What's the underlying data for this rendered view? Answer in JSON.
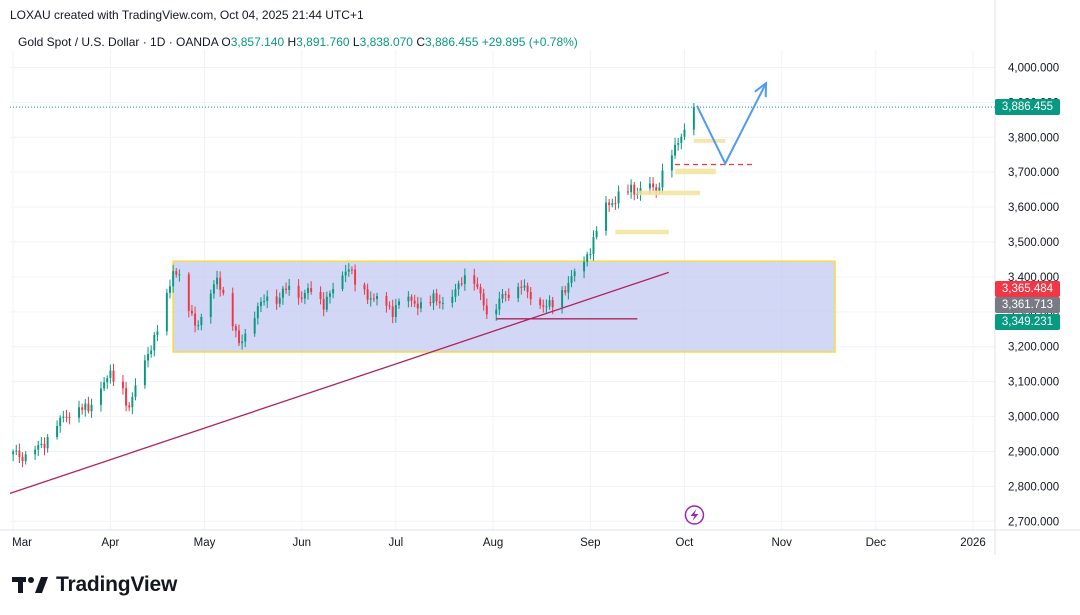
{
  "header": {
    "credit": "LOXAU created with TradingView.com, Oct 04, 2025 21:44 UTC+1"
  },
  "legend": {
    "symbol": "Gold Spot / U.S. Dollar · 1D · OANDA",
    "o_label": "O",
    "o_value": "3,857.140",
    "h_label": "H",
    "h_value": "3,891.760",
    "l_label": "L",
    "l_value": "3,838.070",
    "c_label": "C",
    "c_value": "3,886.455",
    "change": "+29.895 (+0.78%)"
  },
  "branding": {
    "name": "TradingView"
  },
  "colors": {
    "up": "#089981",
    "down": "#f23645",
    "range_fill": "#c5cdf3",
    "range_border": "#f2dd43",
    "trendline": "#b0235e",
    "projection": "#4e9bf4",
    "zone": "#f3e39b",
    "grid": "#f0f3fa",
    "icon": "#9c27b0"
  },
  "price_tags": [
    {
      "label": "3,886.455",
      "value": 3886.455,
      "color": "#089981"
    },
    {
      "label": "3,365.484",
      "value": 3365.484,
      "color": "#f23645"
    },
    {
      "label": "3,361.713",
      "value": 3361.713,
      "color": "#787b86"
    },
    {
      "label": "3,349.231",
      "value": 3349.231,
      "color": "#089981"
    }
  ],
  "chart_data": {
    "type": "candlestick",
    "title": "Gold Spot / U.S. Dollar · 1D · OANDA",
    "y_ticks": [
      "4,000.000",
      "3,900.000",
      "3,800.000",
      "3,700.000",
      "3,600.000",
      "3,500.000",
      "3,400.000",
      "3,300.000",
      "3,200.000",
      "3,100.000",
      "3,000.000",
      "2,900.000",
      "2,800.000",
      "2,700.000"
    ],
    "y_tick_values": [
      4000,
      3900,
      3800,
      3700,
      3600,
      3500,
      3400,
      3300,
      3200,
      3100,
      3000,
      2900,
      2800,
      2700
    ],
    "ylim": [
      2675,
      4050
    ],
    "x_ticks": [
      {
        "label": "Mar",
        "day": 0
      },
      {
        "label": "Apr",
        "day": 31
      },
      {
        "label": "May",
        "day": 61
      },
      {
        "label": "Jun",
        "day": 92
      },
      {
        "label": "Jul",
        "day": 122
      },
      {
        "label": "Aug",
        "day": 153
      },
      {
        "label": "Sep",
        "day": 184
      },
      {
        "label": "Oct",
        "day": 214
      },
      {
        "label": "Nov",
        "day": 245
      },
      {
        "label": "Dec",
        "day": 275
      },
      {
        "label": "2026",
        "day": 306
      }
    ],
    "xlim_days": [
      -1,
      313
    ],
    "anchors": [
      [
        0,
        2900
      ],
      [
        3,
        2880
      ],
      [
        6,
        2905
      ],
      [
        10,
        2920
      ],
      [
        13,
        2980
      ],
      [
        17,
        3000
      ],
      [
        21,
        3030
      ],
      [
        24,
        3020
      ],
      [
        28,
        3090
      ],
      [
        31,
        3120
      ],
      [
        34,
        3100
      ],
      [
        37,
        3020
      ],
      [
        40,
        3120
      ],
      [
        45,
        3220
      ],
      [
        48,
        3300
      ],
      [
        51,
        3420
      ],
      [
        53,
        3395
      ],
      [
        56,
        3300
      ],
      [
        59,
        3260
      ],
      [
        62,
        3320
      ],
      [
        65,
        3400
      ],
      [
        69,
        3290
      ],
      [
        72,
        3210
      ],
      [
        75,
        3250
      ],
      [
        78,
        3310
      ],
      [
        81,
        3350
      ],
      [
        84,
        3330
      ],
      [
        88,
        3380
      ],
      [
        92,
        3340
      ],
      [
        95,
        3370
      ],
      [
        99,
        3320
      ],
      [
        103,
        3380
      ],
      [
        107,
        3430
      ],
      [
        110,
        3360
      ],
      [
        114,
        3340
      ],
      [
        117,
        3330
      ],
      [
        121,
        3300
      ],
      [
        124,
        3340
      ],
      [
        127,
        3330
      ],
      [
        131,
        3310
      ],
      [
        134,
        3340
      ],
      [
        138,
        3320
      ],
      [
        141,
        3360
      ],
      [
        145,
        3420
      ],
      [
        147,
        3390
      ],
      [
        151,
        3300
      ],
      [
        153,
        3290
      ],
      [
        155,
        3340
      ],
      [
        158,
        3350
      ],
      [
        162,
        3380
      ],
      [
        165,
        3340
      ],
      [
        168,
        3320
      ],
      [
        172,
        3320
      ],
      [
        175,
        3350
      ],
      [
        178,
        3400
      ],
      [
        181,
        3420
      ],
      [
        184,
        3480
      ],
      [
        186,
        3530
      ],
      [
        189,
        3600
      ],
      [
        192,
        3620
      ],
      [
        194,
        3640
      ],
      [
        197,
        3650
      ],
      [
        199,
        3640
      ],
      [
        202,
        3680
      ],
      [
        205,
        3640
      ],
      [
        207,
        3700
      ],
      [
        209,
        3750
      ],
      [
        212,
        3780
      ],
      [
        214,
        3830
      ],
      [
        216,
        3857
      ],
      [
        217,
        3886.455
      ]
    ],
    "last_close": 3886.455,
    "range_box": {
      "day_start": 51,
      "day_end": 262,
      "price_top": 3445,
      "price_bottom": 3185
    },
    "trendline": {
      "start": {
        "day": -1,
        "price": 2780
      },
      "end": {
        "day": 209,
        "price": 3413
      }
    },
    "support_line": {
      "day_start": 154,
      "day_end": 199,
      "price": 3280
    },
    "dashed_level": {
      "day_start": 211,
      "day_end": 236,
      "price": 3722
    },
    "zones": [
      {
        "day_start": 192,
        "day_end": 209,
        "price_top": 3535,
        "price_bottom": 3522
      },
      {
        "day_start": 199,
        "day_end": 219,
        "price_top": 3647,
        "price_bottom": 3634
      },
      {
        "day_start": 211,
        "day_end": 224,
        "price_top": 3710,
        "price_bottom": 3694
      },
      {
        "day_start": 217,
        "day_end": 227,
        "price_top": 3795,
        "price_bottom": 3784
      }
    ],
    "projection": [
      {
        "day": 218,
        "price": 3890
      },
      {
        "day": 227,
        "price": 3725
      },
      {
        "day": 240,
        "price": 3955
      }
    ],
    "projection_arrow": {
      "day": 240,
      "price": 3955
    }
  }
}
